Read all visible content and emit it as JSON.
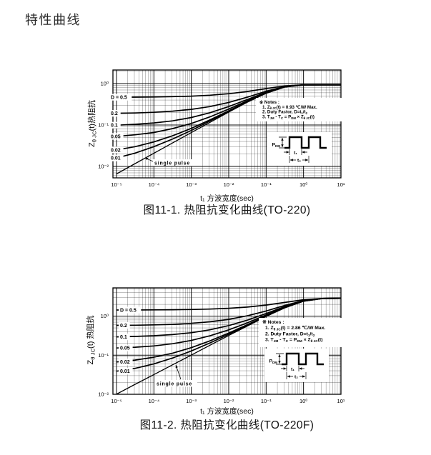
{
  "page": {
    "title": "特性曲线"
  },
  "chart_data": [
    {
      "type": "line",
      "title": "图11-1. 热阻抗变化曲线(TO-220)",
      "xlabel": "t₁ 方波宽度(sec)",
      "ylabel": "Z~θ JC~(t)热阻抗",
      "x_scale": "log",
      "y_scale": "log",
      "xlim": [
        1e-05,
        10
      ],
      "ylim": [
        0.0053,
        2.13
      ],
      "grid": "log-minor-both-axes",
      "legend_position": "labels-on-curves-left",
      "zth_max_c_per_w": 0.93,
      "x_ticks": {
        "labels": [
          "10⁻⁵",
          "10⁻⁴",
          "10⁻³",
          "10⁻²",
          "10⁻¹",
          "10⁰",
          "10¹"
        ],
        "values": [
          1e-05,
          0.0001,
          0.001,
          0.01,
          0.1,
          1,
          10
        ]
      },
      "y_ticks": {
        "labels": [
          "10⁰",
          "10⁻¹",
          "10⁻²"
        ],
        "values": [
          1,
          0.1,
          0.01
        ]
      },
      "x": [
        1e-05,
        3.16e-05,
        0.0001,
        0.000316,
        0.001,
        0.00316,
        0.01,
        0.0316,
        0.1,
        0.316,
        1,
        3.16,
        10
      ],
      "series": [
        {
          "name": "D = 0.5",
          "label": "D = 0.5",
          "values": [
            0.468,
            0.471,
            0.475,
            0.483,
            0.498,
            0.523,
            0.568,
            0.643,
            0.757,
            0.879,
            0.928,
            0.93,
            0.93
          ]
        },
        {
          "name": "D = 0.2",
          "label": "0.2",
          "values": [
            0.191,
            0.195,
            0.203,
            0.216,
            0.239,
            0.279,
            0.35,
            0.47,
            0.653,
            0.849,
            0.927,
            0.93,
            0.93
          ]
        },
        {
          "name": "D = 0.1",
          "label": "0.1",
          "values": [
            0.099,
            0.104,
            0.112,
            0.126,
            0.152,
            0.198,
            0.278,
            0.413,
            0.618,
            0.839,
            0.927,
            0.93,
            0.93
          ]
        },
        {
          "name": "D = 0.05",
          "label": "0.05",
          "values": [
            0.053,
            0.058,
            0.066,
            0.082,
            0.109,
            0.157,
            0.242,
            0.384,
            0.601,
            0.834,
            0.927,
            0.93,
            0.93
          ]
        },
        {
          "name": "D = 0.02",
          "label": "0.02",
          "values": [
            0.025,
            0.03,
            0.039,
            0.055,
            0.083,
            0.133,
            0.22,
            0.367,
            0.59,
            0.831,
            0.927,
            0.93,
            0.93
          ]
        },
        {
          "name": "D = 0.01",
          "label": "0.01",
          "values": [
            0.016,
            0.021,
            0.03,
            0.046,
            0.074,
            0.125,
            0.213,
            0.361,
            0.587,
            0.83,
            0.927,
            0.93,
            0.93
          ]
        },
        {
          "name": "single pulse",
          "label": null,
          "values": [
            0.0066,
            0.0117,
            0.0208,
            0.0369,
            0.0657,
            0.116,
            0.205,
            0.356,
            0.583,
            0.829,
            0.927,
            0.93,
            0.93
          ]
        }
      ],
      "annotations": {
        "single_pulse_label": "single pulse",
        "notes_title": "※ Notes :",
        "notes": [
          "1. Z~θ JC~(t) = 0.93 ℃/W Max.",
          "2. Duty Factor, D=t~1~/t~2~",
          "3. T~JM~ - T~C~ = P~DM~ × Z~θ JC~(t)"
        ],
        "pulse_diagram": {
          "amplitude_label": "P~DM~",
          "t1_label": "t₁",
          "t2_label": "t₂"
        }
      }
    },
    {
      "type": "line",
      "title": "图11-2. 热阻抗变化曲线(TO-220F)",
      "xlabel": "t₁ 方波宽度(sec)",
      "ylabel": "Z~θ JC~(t) 热阻抗",
      "x_scale": "log",
      "y_scale": "log",
      "xlim": [
        1e-05,
        10
      ],
      "ylim": [
        0.01,
        5.3
      ],
      "grid": "log-minor-both-axes",
      "legend_position": "labels-on-curves-left",
      "zth_max_c_per_w": 2.86,
      "x_ticks": {
        "labels": [
          "10⁻⁵",
          "10⁻⁴",
          "10⁻³",
          "10⁻²",
          "10⁻¹",
          "10⁰",
          "10¹"
        ],
        "values": [
          1e-05,
          0.0001,
          0.001,
          0.01,
          0.1,
          1,
          10
        ]
      },
      "y_ticks": {
        "labels": [
          "10⁰",
          "10⁻¹",
          "10⁻²"
        ],
        "values": [
          1,
          0.1,
          0.01
        ]
      },
      "x": [
        1e-05,
        3.16e-05,
        0.0001,
        0.000316,
        0.001,
        0.00316,
        0.01,
        0.0316,
        0.1,
        0.316,
        1,
        3.16,
        10
      ],
      "series": [
        {
          "name": "D = 0.5",
          "label": "D = 0.5",
          "values": [
            1.435,
            1.439,
            1.446,
            1.458,
            1.481,
            1.52,
            1.589,
            1.71,
            1.92,
            2.247,
            2.638,
            2.846,
            2.86
          ]
        },
        {
          "name": "D = 0.2",
          "label": "0.2",
          "values": [
            0.58,
            0.586,
            0.598,
            0.617,
            0.653,
            0.716,
            0.827,
            1.02,
            1.356,
            1.879,
            2.505,
            2.838,
            2.86
          ]
        },
        {
          "name": "D = 0.1",
          "label": "0.1",
          "values": [
            0.295,
            0.302,
            0.315,
            0.337,
            0.377,
            0.448,
            0.573,
            0.79,
            1.168,
            1.756,
            2.46,
            2.835,
            2.86
          ]
        },
        {
          "name": "D = 0.05",
          "label": "0.05",
          "values": [
            0.153,
            0.16,
            0.173,
            0.197,
            0.239,
            0.314,
            0.446,
            0.675,
            1.074,
            1.695,
            2.438,
            2.834,
            2.86
          ]
        },
        {
          "name": "D = 0.02",
          "label": "0.02",
          "values": [
            0.067,
            0.075,
            0.089,
            0.113,
            0.156,
            0.233,
            0.369,
            0.606,
            1.018,
            1.658,
            2.425,
            2.833,
            2.86
          ]
        },
        {
          "name": "D = 0.01",
          "label": "0.01",
          "values": [
            0.039,
            0.046,
            0.06,
            0.085,
            0.129,
            0.206,
            0.344,
            0.583,
            0.999,
            1.646,
            2.42,
            2.832,
            2.86
          ]
        },
        {
          "name": "single pulse",
          "label": null,
          "values": [
            0.0101,
            0.018,
            0.032,
            0.0568,
            0.101,
            0.18,
            0.319,
            0.56,
            0.98,
            1.634,
            2.416,
            2.832,
            2.86
          ]
        }
      ],
      "annotations": {
        "single_pulse_label": "single pulse",
        "notes_title": "※ Notes :",
        "notes": [
          "1. Z~θ JC~(t) = 2.86 ℃/W Max.",
          "2. Duty Factor, D=t~1~/t~2~",
          "3. T~JM~ - T~C~ = P~DM~ × Z~θ JC~(t)"
        ],
        "pulse_diagram": {
          "amplitude_label": "P~DM~",
          "t1_label": "t₁",
          "t2_label": "t₂"
        }
      }
    }
  ]
}
